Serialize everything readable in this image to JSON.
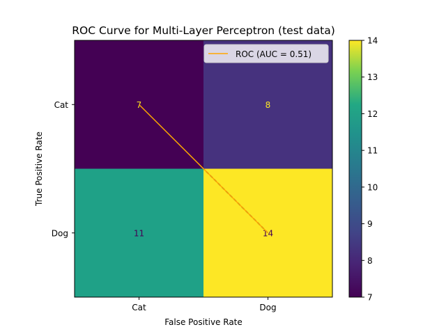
{
  "chart_data": {
    "type": "heatmap",
    "title": "ROC Curve for Multi-Layer Perceptron (test data)",
    "xlabel": "False Positive Rate",
    "ylabel": "True Positive Rate",
    "x_categories": [
      "Cat",
      "Dog"
    ],
    "y_categories": [
      "Cat",
      "Dog"
    ],
    "matrix": [
      [
        7,
        8
      ],
      [
        11,
        14
      ]
    ],
    "colorbar": {
      "range": [
        7,
        14
      ],
      "ticks": [
        "7",
        "8",
        "9",
        "10",
        "11",
        "12",
        "13",
        "14"
      ],
      "colormap": "viridis"
    },
    "roc_line": {
      "legend_label": "ROC (AUC = 0.51)",
      "color": "#ffa500",
      "x": [
        0,
        1
      ],
      "y": [
        0,
        1
      ]
    },
    "reference_line": {
      "color": "#1f1f5a",
      "style": "dashed"
    },
    "legend_position": "top-right",
    "cell_colors": {
      "7": "#440154",
      "8": "#46327e",
      "11": "#1fa187",
      "14": "#fde725"
    },
    "annotation_colors": {
      "light_text": "#fde725",
      "dark_text": "#440154"
    }
  }
}
